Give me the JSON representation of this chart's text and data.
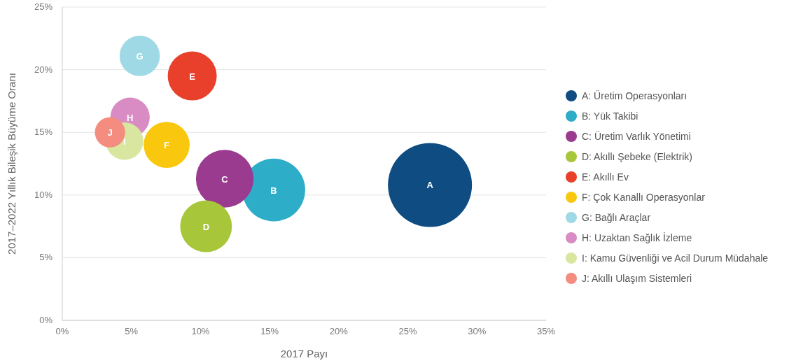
{
  "chart_data": {
    "type": "bubble",
    "xlabel": "2017 Payı",
    "ylabel": "2017–2022 Yıllık Bileşik Büyüme Oranı",
    "xlim": [
      0,
      35
    ],
    "ylim": [
      0,
      25
    ],
    "xticks": [
      {
        "value": 0,
        "label": "0%"
      },
      {
        "value": 5,
        "label": "5%"
      },
      {
        "value": 10,
        "label": "10%"
      },
      {
        "value": 15,
        "label": "15%"
      },
      {
        "value": 20,
        "label": "20%"
      },
      {
        "value": 25,
        "label": "25%"
      },
      {
        "value": 30,
        "label": "30%"
      },
      {
        "value": 35,
        "label": "35%"
      }
    ],
    "yticks": [
      {
        "value": 0,
        "label": "0%"
      },
      {
        "value": 5,
        "label": "5%"
      },
      {
        "value": 10,
        "label": "10%"
      },
      {
        "value": 15,
        "label": "15%"
      },
      {
        "value": 20,
        "label": "20%"
      },
      {
        "value": 25,
        "label": "25%"
      }
    ],
    "grid": "y",
    "legend": "right",
    "series": [
      {
        "name": "A: Üretim Operasyonları",
        "color": "#0e4c82",
        "x": [
          26.6
        ],
        "values": [
          10.8
        ],
        "sizes": [
          1
        ]
      },
      {
        "name": "B: Yük Takibi",
        "color": "#2eadc8",
        "x": [
          15.3
        ],
        "values": [
          10.4
        ],
        "sizes": [
          0.56
        ]
      },
      {
        "name": "C: Üretim Varlık Yönetimi",
        "color": "#9b3b8f",
        "x": [
          11.75
        ],
        "values": [
          11.3
        ],
        "sizes": [
          0.47
        ]
      },
      {
        "name": "D: Akıllı Şebeke (Elektrik)",
        "color": "#a8c63a",
        "x": [
          10.4
        ],
        "values": [
          7.5
        ],
        "sizes": [
          0.38
        ]
      },
      {
        "name": "E: Akıllı Ev",
        "color": "#e8402a",
        "x": [
          9.4
        ],
        "values": [
          19.5
        ],
        "sizes": [
          0.34
        ]
      },
      {
        "name": "F: Çok Kanallı Operasyonlar",
        "color": "#f9c80e",
        "x": [
          7.55
        ],
        "values": [
          14.0
        ],
        "sizes": [
          0.3
        ]
      },
      {
        "name": "G: Bağlı Araçlar",
        "color": "#9fd9e6",
        "x": [
          5.6
        ],
        "values": [
          21.1
        ],
        "sizes": [
          0.23
        ]
      },
      {
        "name": "H: Uzaktan Sağlık İzleme",
        "color": "#d98cc3",
        "x": [
          4.9
        ],
        "values": [
          16.2
        ],
        "sizes": [
          0.22
        ]
      },
      {
        "name": "I: Kamu Güvenliği ve Acil Durum Müdahale",
        "color": "#d8e6a0",
        "x": [
          4.5
        ],
        "values": [
          14.3
        ],
        "sizes": [
          0.2
        ]
      },
      {
        "name": "J: Akıllı Ulaşım Sistemleri",
        "color": "#f48c80",
        "x": [
          3.45
        ],
        "values": [
          15.0
        ],
        "sizes": [
          0.13
        ]
      }
    ],
    "annotations": [
      {
        "text": "A",
        "x": 26.6,
        "y": 10.8
      },
      {
        "text": "B",
        "x": 15.3,
        "y": 10.4
      },
      {
        "text": "C",
        "x": 11.75,
        "y": 11.3
      },
      {
        "text": "D",
        "x": 10.4,
        "y": 7.5
      },
      {
        "text": "E",
        "x": 9.4,
        "y": 19.5
      },
      {
        "text": "F",
        "x": 7.55,
        "y": 14.0
      },
      {
        "text": "G",
        "x": 5.6,
        "y": 21.1
      },
      {
        "text": "H",
        "x": 4.9,
        "y": 16.2
      },
      {
        "text": "I",
        "x": 4.5,
        "y": 14.3
      },
      {
        "text": "J",
        "x": 3.45,
        "y": 15.0
      }
    ]
  }
}
